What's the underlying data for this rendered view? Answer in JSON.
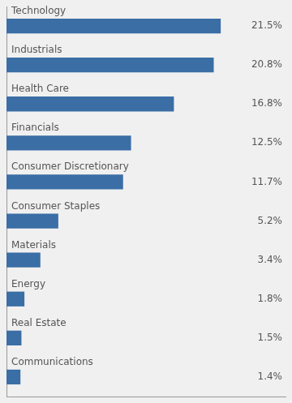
{
  "chart_data": {
    "type": "bar",
    "orientation": "horizontal",
    "categories": [
      "Communications",
      "Real Estate",
      "Energy",
      "Materials",
      "Consumer Staples",
      "Consumer Discretionary",
      "Financials",
      "Health Care",
      "Industrials",
      "Technology"
    ],
    "values": [
      1.4,
      1.5,
      1.8,
      3.4,
      5.2,
      11.7,
      12.5,
      16.8,
      20.8,
      21.5
    ],
    "value_labels": [
      "1.4%",
      "1.5%",
      "1.8%",
      "3.4%",
      "5.2%",
      "11.7%",
      "12.5%",
      "16.8%",
      "20.8%",
      "21.5%"
    ],
    "data_labels": true,
    "color": "#3A6EA5",
    "xlim": [
      0,
      28
    ],
    "tick_labels": false,
    "grid": false
  }
}
